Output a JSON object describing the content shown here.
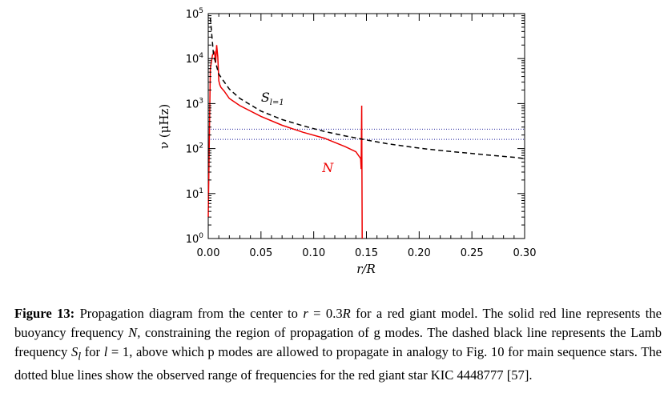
{
  "chart_data": {
    "type": "line",
    "xlabel": "r/R",
    "ylabel": "ν (μHz)",
    "xlim": [
      0.0,
      0.3
    ],
    "ylim_log10": [
      0,
      5
    ],
    "yscale": "log",
    "x_ticks": [
      "0.00",
      "0.05",
      "0.10",
      "0.15",
      "0.20",
      "0.25",
      "0.30"
    ],
    "y_ticks": [
      {
        "base": "10",
        "exp": "0"
      },
      {
        "base": "10",
        "exp": "1"
      },
      {
        "base": "10",
        "exp": "2"
      },
      {
        "base": "10",
        "exp": "3"
      },
      {
        "base": "10",
        "exp": "4"
      },
      {
        "base": "10",
        "exp": "5"
      }
    ],
    "series": [
      {
        "name": "N",
        "style": "solid",
        "color": "#ee0000",
        "x": [
          0.0,
          0.002,
          0.004,
          0.006,
          0.007,
          0.008,
          0.009,
          0.01,
          0.011,
          0.012,
          0.015,
          0.02,
          0.03,
          0.05,
          0.07,
          0.09,
          0.11,
          0.13,
          0.14,
          0.1445,
          0.145,
          0.1455,
          0.146
        ],
        "y": [
          3,
          6000,
          12000,
          14000,
          8000,
          20000,
          11000,
          3200,
          2600,
          2300,
          1900,
          1300,
          900,
          520,
          330,
          230,
          170,
          110,
          85,
          60,
          35,
          900,
          1
        ]
      },
      {
        "name": "S_{l=1}",
        "style": "dashed",
        "color": "#000000",
        "x": [
          0.002,
          0.005,
          0.01,
          0.02,
          0.03,
          0.05,
          0.07,
          0.09,
          0.11,
          0.13,
          0.15,
          0.17,
          0.19,
          0.21,
          0.23,
          0.25,
          0.27,
          0.29,
          0.3
        ],
        "y": [
          80000,
          12000,
          4500,
          2100,
          1300,
          680,
          440,
          320,
          240,
          190,
          155,
          128,
          110,
          96,
          86,
          78,
          70,
          64,
          60
        ]
      }
    ],
    "hlines": [
      {
        "y": 270,
        "style": "dotted",
        "color": "#1a1a9a"
      },
      {
        "y": 160,
        "style": "dotted",
        "color": "#1a1a9a"
      }
    ],
    "annotations": [
      {
        "text": "N",
        "x": 0.108,
        "y": 30,
        "color": "#ee0000"
      },
      {
        "text": "S",
        "sub": "l=1",
        "x": 0.05,
        "y": 1100,
        "color": "#000000"
      }
    ]
  },
  "caption": {
    "label": "Figure 13:",
    "t1": " Propagation diagram from the center to ",
    "m1": "r",
    "t2": " = 0.3",
    "m2": "R",
    "t3": " for a red giant model.  The solid red line represents the buoyancy frequency ",
    "m3": "N",
    "t4": ", constraining the region of propagation of g modes. The dashed black line represents the Lamb frequency ",
    "m4": "S",
    "m4sub": "l",
    "t5": " for ",
    "m5": "l",
    "t6": " = 1, above which p modes are allowed to propagate in analogy to Fig. 10 for main sequence stars. The dotted blue lines show the observed range of frequencies for the red giant star KIC 4448777 [57]."
  }
}
